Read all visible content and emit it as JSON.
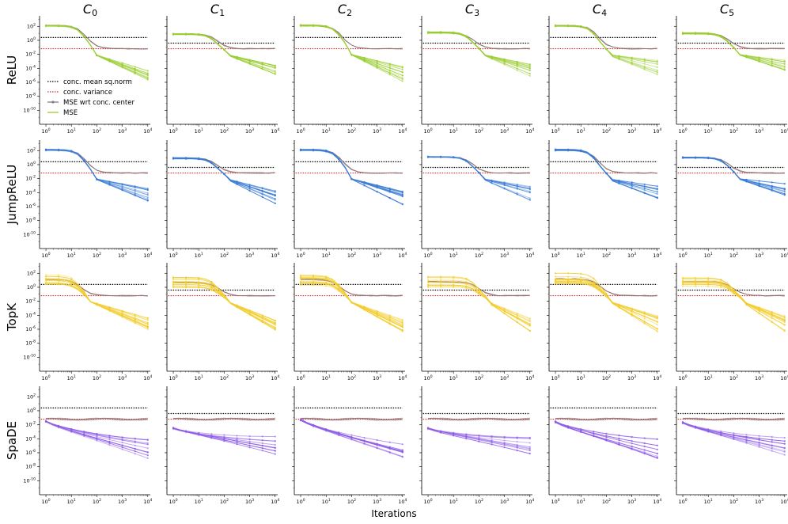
{
  "chart_data": {
    "type": "line",
    "title": "",
    "xlabel": "Iterations",
    "ylabel": "",
    "xscale": "log",
    "yscale": "log",
    "xlim_exp": [
      -0.25,
      4.1
    ],
    "ylim_exp": [
      -12,
      3.5
    ],
    "x_tick_labels": [
      {
        "base": "10",
        "exp": "0"
      },
      {
        "base": "10",
        "exp": "1"
      },
      {
        "base": "10",
        "exp": "2"
      },
      {
        "base": "10",
        "exp": "3"
      },
      {
        "base": "10",
        "exp": "4"
      }
    ],
    "y_tick_labels": [
      {
        "base": "10",
        "exp": "2"
      },
      {
        "base": "10",
        "exp": "0"
      },
      {
        "base": "10",
        "exp": "-2"
      },
      {
        "base": "10",
        "exp": "-4"
      },
      {
        "base": "10",
        "exp": "-6"
      },
      {
        "base": "10",
        "exp": "-8"
      },
      {
        "base": "10",
        "exp": "-10"
      }
    ],
    "columns": [
      {
        "base": "C",
        "sub": "0"
      },
      {
        "base": "C",
        "sub": "1"
      },
      {
        "base": "C",
        "sub": "2"
      },
      {
        "base": "C",
        "sub": "3"
      },
      {
        "base": "C",
        "sub": "4"
      },
      {
        "base": "C",
        "sub": "5"
      }
    ],
    "rows": [
      {
        "label": "ReLU",
        "color": "#9acd32",
        "init_log10": [
          2.1,
          0.9,
          2.1,
          1.1,
          2.1,
          1.0
        ],
        "final_log10": [
          -4.8,
          -4.0,
          -4.8,
          -4.1,
          -3.8,
          -3.6
        ],
        "drop_x_exp": [
          1.6,
          1.75,
          1.65,
          1.8,
          1.7,
          1.85
        ]
      },
      {
        "label": "JumpReLU",
        "color": "#3a7bd5",
        "init_log10": [
          2.1,
          0.9,
          2.1,
          1.1,
          2.1,
          1.0
        ],
        "final_log10": [
          -4.3,
          -4.8,
          -4.6,
          -4.0,
          -4.1,
          -3.7
        ],
        "drop_x_exp": [
          1.6,
          1.75,
          1.65,
          1.8,
          1.7,
          1.85
        ]
      },
      {
        "label": "TopK",
        "color": "#f2cd2e",
        "init_log10": [
          1.1,
          0.7,
          1.1,
          0.8,
          1.2,
          0.8
        ],
        "final_log10": [
          -5.4,
          -5.6,
          -5.2,
          -5.2,
          -5.2,
          -5.2
        ],
        "drop_x_exp": [
          1.4,
          1.8,
          1.6,
          2.0,
          1.8,
          2.0
        ]
      },
      {
        "label": "SpaDE",
        "color": "#8e5de8",
        "init_log10": [
          -1.5,
          -2.5,
          -1.3,
          -2.5,
          -1.6,
          -1.7
        ],
        "final_log10": [
          -5.3,
          -5.0,
          -5.4,
          -5.0,
          -5.4,
          -5.2
        ],
        "drop_x_exp": [
          0.6,
          0.6,
          0.6,
          0.6,
          0.6,
          0.6
        ]
      }
    ],
    "reference_lines": [
      {
        "name": "conc. mean sq.norm",
        "color": "#000000",
        "values_log10": [
          0.4,
          -0.4,
          0.4,
          -0.4,
          0.4,
          -0.4
        ]
      },
      {
        "name": "conc. variance",
        "color": "#d62728",
        "values_log10": [
          -1.2,
          -1.2,
          -1.2,
          -1.2,
          -1.2,
          -1.2
        ]
      }
    ],
    "mse_center_plateau_log10": -1.2,
    "legend": {
      "placement": "inside first panel, lower-left",
      "entries": [
        {
          "label": "conc. mean sq.norm",
          "style": "dotted",
          "color": "#000000"
        },
        {
          "label": "conc. variance",
          "style": "dotted",
          "color": "#d62728"
        },
        {
          "label": "MSE wrt conc. center",
          "style": "solid-marker",
          "color": "#808080"
        },
        {
          "label": "MSE",
          "style": "solid",
          "color": "#9acd32"
        }
      ]
    }
  }
}
